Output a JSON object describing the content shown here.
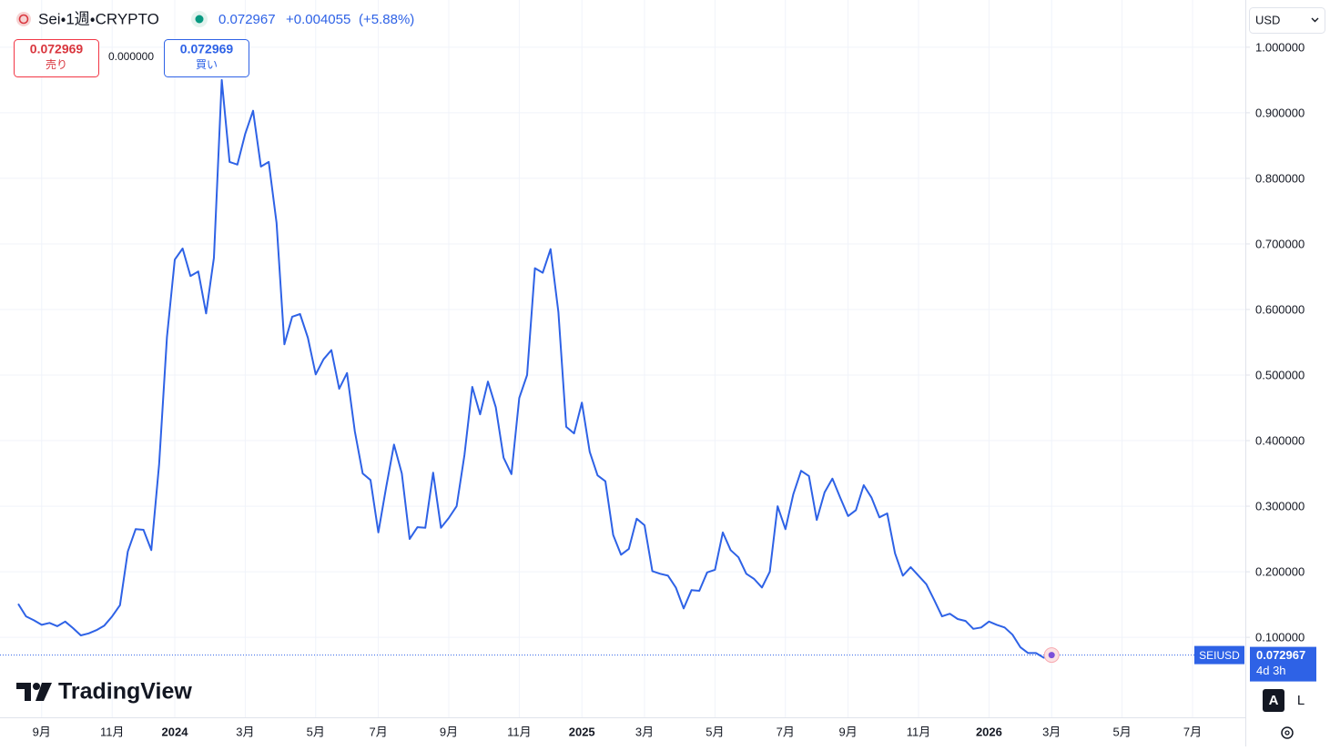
{
  "ui": {
    "symbol": "Sei・1週・CRYPTO",
    "change": "+0.004055",
    "change_pct": "(+5.88%)",
    "sell_price": "0.072969",
    "sell_label": "売り",
    "spread": "0.000000",
    "buy_price": "0.072969",
    "buy_label": "買い",
    "currency": "USD",
    "ticker": "SEIUSD",
    "countdown": "4d 3h",
    "brand": "TradingView",
    "auto": "A",
    "log": "L"
  },
  "chart_data": {
    "type": "line",
    "grid": true,
    "ylim": [
      -0.022,
      1.072
    ],
    "yticks": [
      {
        "value": 0.1,
        "label": "0.100000"
      },
      {
        "value": 0.2,
        "label": "0.200000"
      },
      {
        "value": 0.3,
        "label": "0.300000"
      },
      {
        "value": 0.4,
        "label": "0.400000"
      },
      {
        "value": 0.5,
        "label": "0.500000"
      },
      {
        "value": 0.6,
        "label": "0.600000"
      },
      {
        "value": 0.7,
        "label": "0.700000"
      },
      {
        "value": 0.8,
        "label": "0.800000"
      },
      {
        "value": 0.9,
        "label": "0.900000"
      },
      {
        "value": 1.0,
        "label": "1.000000"
      }
    ],
    "categories": [
      null,
      null,
      null,
      "9月",
      null,
      null,
      null,
      null,
      null,
      null,
      null,
      null,
      "11月",
      null,
      null,
      null,
      null,
      null,
      null,
      null,
      "2024",
      null,
      null,
      null,
      null,
      null,
      null,
      null,
      null,
      "3月",
      null,
      null,
      null,
      null,
      null,
      null,
      null,
      null,
      "5月",
      null,
      null,
      null,
      null,
      null,
      null,
      null,
      "7月",
      null,
      null,
      null,
      null,
      null,
      null,
      null,
      null,
      "9月",
      null,
      null,
      null,
      null,
      null,
      null,
      null,
      null,
      "11月",
      null,
      null,
      null,
      null,
      null,
      null,
      null,
      "2025",
      null,
      null,
      null,
      null,
      null,
      null,
      null,
      "3月",
      null,
      null,
      null,
      null,
      null,
      null,
      null,
      null,
      "5月",
      null,
      null,
      null,
      null,
      null,
      null,
      null,
      null,
      "7月",
      null,
      null,
      null,
      null,
      null,
      null,
      null,
      "9月",
      null,
      null,
      null,
      null,
      null,
      null,
      null,
      null,
      "11月",
      null,
      null,
      null,
      null,
      null,
      null,
      null,
      null,
      "2026",
      null,
      null,
      null,
      null,
      null,
      null,
      null,
      "3月",
      null,
      null,
      null,
      null,
      null,
      null,
      null,
      null,
      "5月",
      null,
      null,
      null,
      null,
      null,
      null,
      null,
      null,
      "7月"
    ],
    "series": [
      {
        "name": "SEIUSD",
        "color": "#2e62e6",
        "values": [
          0.151,
          0.132,
          0.126,
          0.119,
          0.122,
          0.117,
          0.124,
          0.114,
          0.103,
          0.106,
          0.111,
          0.118,
          0.132,
          0.149,
          0.231,
          0.265,
          0.264,
          0.233,
          0.364,
          0.558,
          0.676,
          0.693,
          0.651,
          0.658,
          0.594,
          0.679,
          0.95,
          0.825,
          0.821,
          0.868,
          0.903,
          0.818,
          0.825,
          0.732,
          0.547,
          0.589,
          0.593,
          0.557,
          0.501,
          0.524,
          0.538,
          0.479,
          0.503,
          0.414,
          0.35,
          0.34,
          0.26,
          0.329,
          0.394,
          0.35,
          0.25,
          0.268,
          0.267,
          0.351,
          0.267,
          0.282,
          0.3,
          0.378,
          0.482,
          0.44,
          0.49,
          0.451,
          0.374,
          0.349,
          0.465,
          0.5,
          0.663,
          0.656,
          0.692,
          0.596,
          0.421,
          0.411,
          0.458,
          0.383,
          0.347,
          0.338,
          0.256,
          0.226,
          0.235,
          0.281,
          0.271,
          0.201,
          0.197,
          0.194,
          0.176,
          0.144,
          0.172,
          0.171,
          0.199,
          0.203,
          0.26,
          0.233,
          0.222,
          0.197,
          0.189,
          0.176,
          0.2,
          0.3,
          0.265,
          0.318,
          0.354,
          0.346,
          0.279,
          0.321,
          0.342,
          0.313,
          0.285,
          0.294,
          0.332,
          0.313,
          0.283,
          0.289,
          0.228,
          0.194,
          0.207,
          0.194,
          0.181,
          0.157,
          0.132,
          0.136,
          0.128,
          0.125,
          0.113,
          0.115,
          0.124,
          0.119,
          0.115,
          0.104,
          0.085,
          0.076,
          0.076,
          0.069,
          0.072967,
          null,
          null,
          null,
          null,
          null,
          null,
          null,
          null,
          null,
          null,
          null,
          null,
          null,
          null,
          null,
          null,
          null,
          null
        ]
      }
    ]
  }
}
